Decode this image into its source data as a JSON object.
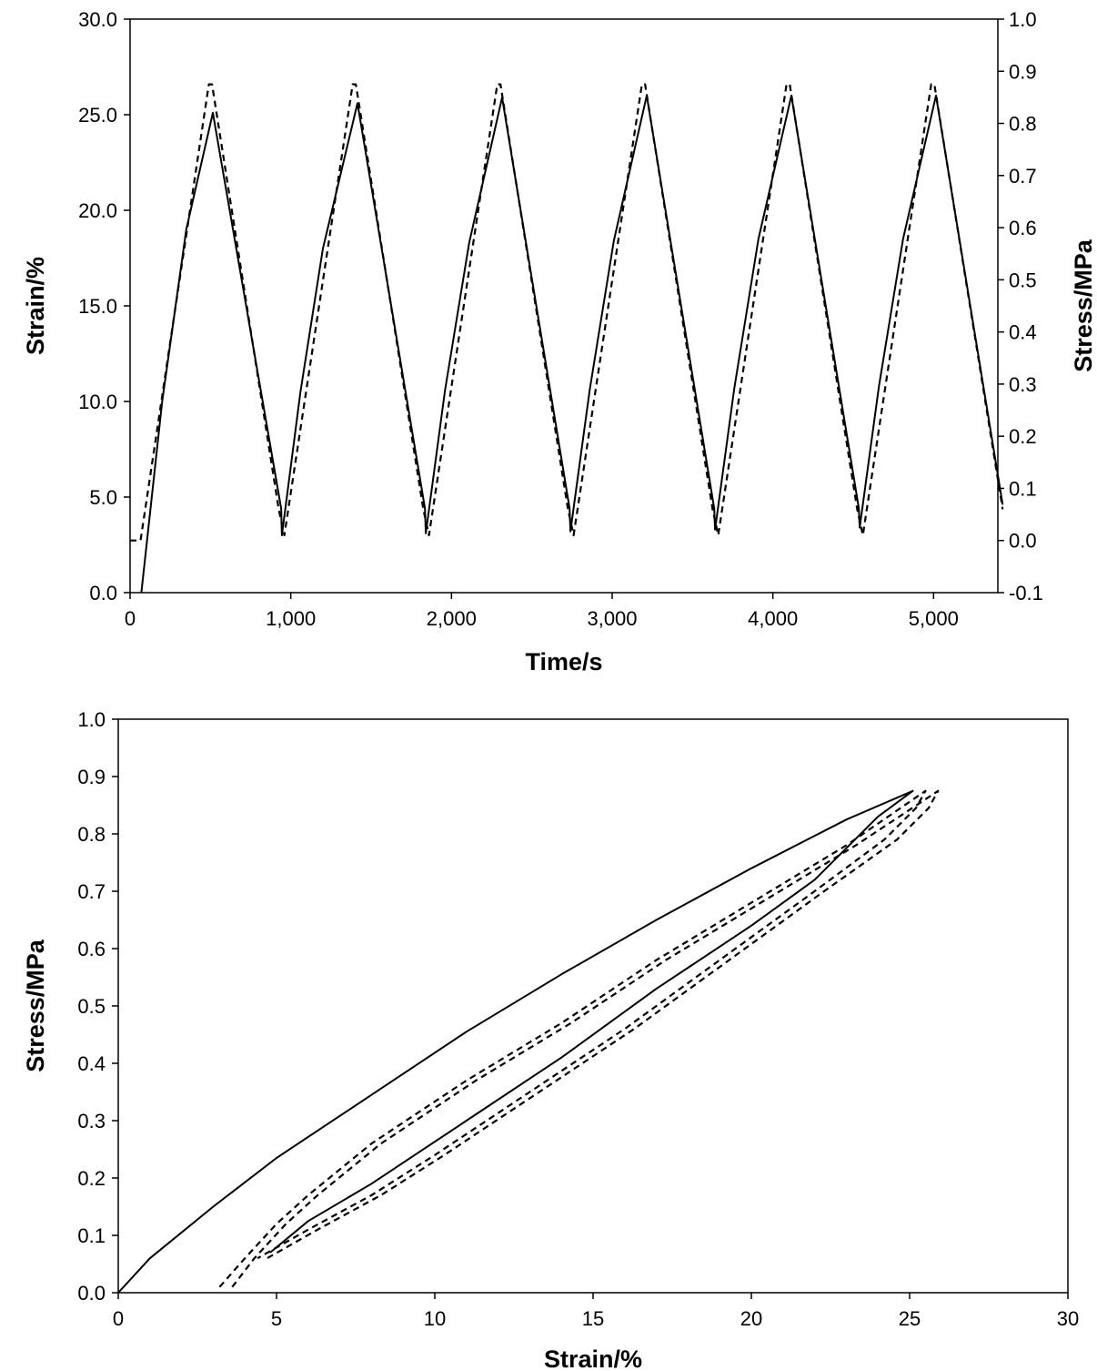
{
  "chart_data": [
    {
      "type": "line",
      "title": "",
      "xlabel": "Time/s",
      "ylabel": "Strain/%",
      "y2label": "Stress/MPa",
      "xlim": [
        0,
        5400
      ],
      "ylim": [
        0,
        30
      ],
      "y2lim": [
        -0.1,
        1.0
      ],
      "xticks": [
        "0",
        "1,000",
        "2,000",
        "3,000",
        "4,000",
        "5,000"
      ],
      "yticks": [
        "0.0",
        "5.0",
        "10.0",
        "15.0",
        "20.0",
        "25.0",
        "30.0"
      ],
      "y2ticks": [
        "-0.1",
        "0.0",
        "0.1",
        "0.2",
        "0.3",
        "0.4",
        "0.5",
        "0.6",
        "0.7",
        "0.8",
        "0.9",
        "1.0"
      ],
      "grid": false,
      "legend": "none",
      "series": [
        {
          "axis": "left",
          "style": "solid",
          "x": [
            70,
            200,
            350,
            515,
            940,
            945,
            1060,
            1200,
            1415,
            1835,
            1840,
            1960,
            2110,
            2315,
            2735,
            2740,
            2860,
            3010,
            3215,
            3635,
            3640,
            3760,
            3910,
            4115,
            4535,
            4540,
            4660,
            4810,
            5015,
            5430
          ],
          "y": [
            0.0,
            10.0,
            19.0,
            25.1,
            4.4,
            3.0,
            10.5,
            18.0,
            25.6,
            4.4,
            3.1,
            10.6,
            18.3,
            25.9,
            4.4,
            3.2,
            10.6,
            18.4,
            26.0,
            4.4,
            3.3,
            10.7,
            18.5,
            26.0,
            4.4,
            3.4,
            10.8,
            18.5,
            26.0,
            4.6
          ]
        },
        {
          "axis": "right",
          "style": "dashed",
          "x": [
            0,
            65,
            490,
            510,
            925,
            925,
            960,
            1385,
            1405,
            1825,
            1825,
            1860,
            2285,
            2305,
            2725,
            2725,
            2760,
            3185,
            3205,
            3625,
            3625,
            3660,
            4085,
            4105,
            4525,
            4525,
            4560,
            4985,
            5005,
            5430
          ],
          "y": [
            0.0,
            0.0,
            0.875,
            0.875,
            0.06,
            0.06,
            0.01,
            0.875,
            0.875,
            0.06,
            0.06,
            0.01,
            0.875,
            0.875,
            0.06,
            0.06,
            0.01,
            0.875,
            0.875,
            0.06,
            0.06,
            0.01,
            0.875,
            0.875,
            0.06,
            0.06,
            0.01,
            0.875,
            0.875,
            0.06
          ]
        }
      ]
    },
    {
      "type": "line",
      "title": "",
      "xlabel": "Strain/%",
      "ylabel": "Stress/MPa",
      "xlim": [
        0,
        30
      ],
      "ylim": [
        0,
        1.0
      ],
      "xticks": [
        "0",
        "5",
        "10",
        "15",
        "20",
        "25",
        "30"
      ],
      "yticks": [
        "0.0",
        "0.1",
        "0.2",
        "0.3",
        "0.4",
        "0.5",
        "0.6",
        "0.7",
        "0.8",
        "0.9",
        "1.0"
      ],
      "grid": false,
      "legend": "none",
      "series": [
        {
          "style": "solid",
          "x": [
            0,
            1,
            3,
            5,
            8,
            11,
            14,
            17,
            20,
            23,
            25.1,
            24.0,
            22,
            20,
            17,
            14,
            11,
            8,
            6,
            4.8
          ],
          "y": [
            0,
            0.06,
            0.15,
            0.235,
            0.345,
            0.455,
            0.555,
            0.65,
            0.74,
            0.825,
            0.875,
            0.83,
            0.72,
            0.64,
            0.53,
            0.41,
            0.3,
            0.19,
            0.125,
            0.07
          ]
        },
        {
          "style": "dashed",
          "x": [
            3.2,
            4,
            5,
            6,
            8,
            11,
            14,
            17,
            20,
            23,
            25.5,
            25.2,
            24.2,
            22,
            19,
            16,
            13,
            10,
            8,
            6,
            4.4
          ],
          "y": [
            0.01,
            0.06,
            0.12,
            0.17,
            0.26,
            0.37,
            0.47,
            0.58,
            0.68,
            0.78,
            0.875,
            0.845,
            0.79,
            0.7,
            0.58,
            0.46,
            0.35,
            0.24,
            0.17,
            0.11,
            0.06
          ]
        },
        {
          "style": "dashed",
          "x": [
            3.6,
            4.3,
            5.3,
            6.3,
            8.3,
            11.3,
            14.3,
            17.3,
            20.3,
            23.3,
            25.9,
            25.6,
            24.6,
            22.3,
            19.3,
            16.3,
            13.3,
            10.3,
            8.3,
            6.3,
            4.7
          ],
          "y": [
            0.01,
            0.06,
            0.12,
            0.17,
            0.26,
            0.37,
            0.47,
            0.58,
            0.68,
            0.78,
            0.875,
            0.845,
            0.79,
            0.7,
            0.58,
            0.46,
            0.35,
            0.24,
            0.17,
            0.11,
            0.06
          ]
        }
      ]
    }
  ]
}
